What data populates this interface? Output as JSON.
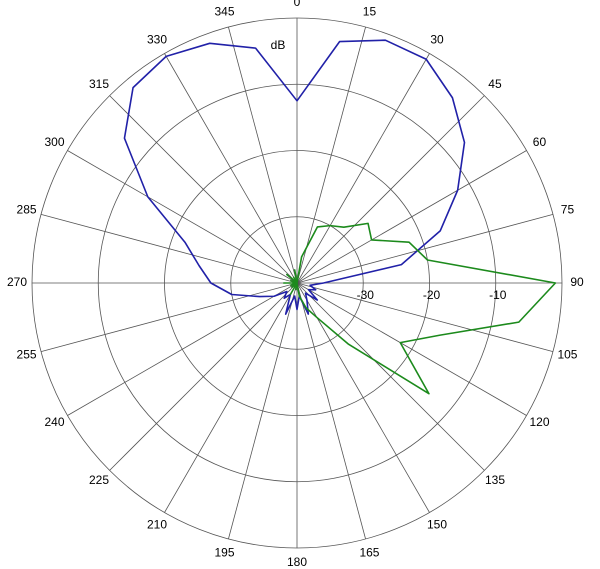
{
  "chart_data": {
    "type": "polar",
    "r_label": "dB",
    "theta": [
      0,
      10,
      20,
      30,
      40,
      50,
      60,
      70,
      80,
      90,
      100,
      110,
      120,
      130,
      140,
      150,
      160,
      170,
      180,
      190,
      200,
      210,
      220,
      230,
      240,
      250,
      260,
      270,
      280,
      290,
      300,
      310,
      320,
      330,
      340,
      350
    ],
    "series": [
      {
        "color": "#2121a8",
        "values": [
          -12.5,
          -3,
          -1,
          -1,
          -3.5,
          -7,
          -12,
          -17,
          -24,
          -36,
          -38,
          -37,
          -38,
          -36,
          -38,
          -37,
          -35,
          -38,
          -36,
          -38,
          -35,
          -38,
          -37,
          -38,
          -36,
          -34,
          -30,
          -27,
          -25,
          -22,
          -14,
          -6,
          -1.5,
          -0.5,
          -1.5,
          -4
        ]
      },
      {
        "color": "#1c8a1c",
        "values": [
          -40,
          -36,
          -31,
          -30,
          -29,
          -26,
          -27,
          -22,
          -20,
          -1,
          -6,
          -17,
          -22,
          -14,
          -28,
          -34,
          -36,
          -38,
          -40,
          -39,
          -40,
          -38,
          -40,
          -39,
          -40,
          -39,
          -40,
          -38,
          -40,
          -39,
          -40,
          -38,
          -40,
          -39,
          -40,
          -38
        ]
      }
    ],
    "rlim": [
      -40,
      0
    ],
    "rticks": [
      -30,
      -20,
      -10
    ],
    "thetaticks": [
      0,
      15,
      30,
      45,
      60,
      75,
      90,
      105,
      120,
      135,
      150,
      165,
      180,
      195,
      210,
      225,
      240,
      255,
      270,
      285,
      300,
      315,
      330,
      345
    ]
  }
}
